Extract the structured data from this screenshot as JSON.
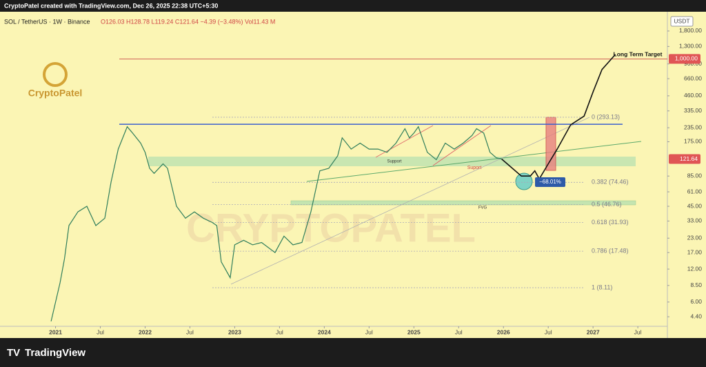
{
  "header": {
    "credit": "CryptoPatel created with TradingView.com, Dec 26, 2025 22:38 UTC+5:30"
  },
  "footer": {
    "brand": "TradingView"
  },
  "chart_data": {
    "type": "line",
    "title": "SOL / TetherUS · 1W · Binance",
    "ohlc": "O126.03 H128.78 L119.24 C121.64 −4.39 (−3.48%) Vol11.43 M",
    "currency": "USDT",
    "logo_text": "CryptoPatel",
    "watermark": "CRYPTOPATEL",
    "log_scale": true,
    "grid": false,
    "xlim": [
      2020.38,
      2027.83
    ],
    "ylim": [
      3.6,
      2700
    ],
    "xticks": [
      {
        "value": 2021,
        "label": "2021"
      },
      {
        "value": 2021.5,
        "label": "Jul"
      },
      {
        "value": 2022,
        "label": "2022"
      },
      {
        "value": 2022.5,
        "label": "Jul"
      },
      {
        "value": 2023,
        "label": "2023"
      },
      {
        "value": 2023.5,
        "label": "Jul"
      },
      {
        "value": 2024,
        "label": "2024"
      },
      {
        "value": 2024.5,
        "label": "Jul"
      },
      {
        "value": 2025,
        "label": "2025"
      },
      {
        "value": 2025.5,
        "label": "Jul"
      },
      {
        "value": 2026,
        "label": "2026"
      },
      {
        "value": 2026.5,
        "label": "Jul"
      },
      {
        "value": 2027,
        "label": "2027"
      },
      {
        "value": 2027.5,
        "label": "Jul"
      }
    ],
    "yticks": [
      {
        "value": 1800,
        "label": "1,800.00"
      },
      {
        "value": 1300,
        "label": "1,300.00"
      },
      {
        "value": 900,
        "label": "900.00"
      },
      {
        "value": 660,
        "label": "660.00"
      },
      {
        "value": 460,
        "label": "460.00"
      },
      {
        "value": 335,
        "label": "335.00"
      },
      {
        "value": 235,
        "label": "235.00"
      },
      {
        "value": 175,
        "label": "175.00"
      },
      {
        "value": 85,
        "label": "85.00"
      },
      {
        "value": 61,
        "label": "61.00"
      },
      {
        "value": 45,
        "label": "45.00"
      },
      {
        "value": 33,
        "label": "33.00"
      },
      {
        "value": 23,
        "label": "23.00"
      },
      {
        "value": 17,
        "label": "17.00"
      },
      {
        "value": 12,
        "label": "12.00"
      },
      {
        "value": 8.5,
        "label": "8.50"
      },
      {
        "value": 6,
        "label": "6.00"
      },
      {
        "value": 4.4,
        "label": "4.40"
      }
    ],
    "price_labels": [
      {
        "value": 1000,
        "label": "1,000.00"
      },
      {
        "value": 121.64,
        "label": "121.64"
      }
    ],
    "resistance": 253,
    "fib_levels": [
      {
        "value": 293.13,
        "label": "0 (293.13)"
      },
      {
        "value": 74.46,
        "label": "0.382 (74.46)"
      },
      {
        "value": 46.76,
        "label": "0.5 (46.76)"
      },
      {
        "value": 31.93,
        "label": "0.618 (31.93)"
      },
      {
        "value": 17.48,
        "label": "0.786 (17.48)"
      },
      {
        "value": 8.11,
        "label": "1 (8.11)"
      }
    ],
    "annotations": [
      "Long Term Target",
      "Support",
      "Suport",
      "FVG",
      "−68.01%"
    ],
    "series": [
      {
        "color": "#2e7d5b",
        "x": [
          2020.95,
          2021.05,
          2021.1,
          2021.15,
          2021.25,
          2021.35,
          2021.45,
          2021.55,
          2021.62,
          2021.7,
          2021.8,
          2021.85,
          2021.95,
          2022.0,
          2022.05,
          2022.1,
          2022.2,
          2022.25,
          2022.35,
          2022.45,
          2022.55,
          2022.65,
          2022.75,
          2022.8,
          2022.85,
          2022.95,
          2023.0,
          2023.1,
          2023.2,
          2023.3,
          2023.45,
          2023.55,
          2023.65,
          2023.75,
          2023.85,
          2023.95,
          2024.05,
          2024.15,
          2024.2,
          2024.3,
          2024.4,
          2024.5,
          2024.6,
          2024.7,
          2024.8,
          2024.9,
          2024.95,
          2025.0,
          2025.05,
          2025.15,
          2025.25,
          2025.35,
          2025.45,
          2025.55,
          2025.65,
          2025.7,
          2025.78,
          2025.85,
          2025.92,
          2025.98
        ],
        "values": [
          4,
          9,
          15,
          30,
          40,
          45,
          30,
          35,
          75,
          150,
          240,
          215,
          170,
          140,
          100,
          90,
          110,
          100,
          45,
          35,
          40,
          35,
          32,
          30,
          14,
          10,
          20,
          22,
          20,
          21,
          17,
          24,
          20,
          21,
          40,
          95,
          100,
          130,
          190,
          150,
          170,
          150,
          150,
          140,
          170,
          230,
          190,
          210,
          240,
          140,
          120,
          170,
          150,
          170,
          200,
          230,
          210,
          140,
          125,
          121.64
        ]
      },
      {
        "color": "#111111",
        "x": [
          2025.98,
          2026.1,
          2026.2,
          2026.3,
          2026.35,
          2026.4,
          2026.5,
          2026.6,
          2026.75,
          2026.9,
          2027.0,
          2027.1,
          2027.25
        ],
        "values": [
          121.64,
          100,
          85,
          85,
          95,
          80,
          110,
          150,
          250,
          300,
          500,
          800,
          1100
        ]
      }
    ]
  }
}
